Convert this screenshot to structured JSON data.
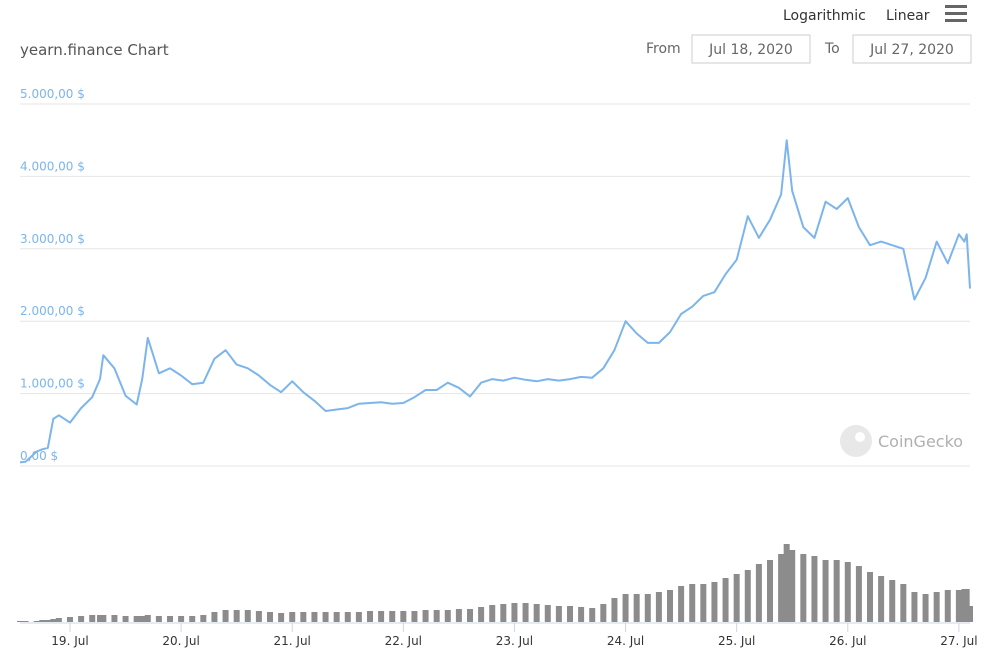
{
  "controls": {
    "scale_options": [
      "Logarithmic",
      "Linear"
    ],
    "from_label": "From",
    "from_date": "Jul 18, 2020",
    "to_label": "To",
    "to_date": "Jul 27, 2020"
  },
  "watermark": "CoinGecko",
  "chart_data": {
    "type": "line",
    "title": "yearn.finance Chart",
    "x": [
      18.55,
      18.6,
      18.7,
      18.75,
      18.8,
      18.85,
      18.9,
      19.0,
      19.1,
      19.2,
      19.27,
      19.3,
      19.4,
      19.5,
      19.6,
      19.65,
      19.7,
      19.8,
      19.9,
      20.0,
      20.1,
      20.2,
      20.3,
      20.4,
      20.5,
      20.6,
      20.7,
      20.8,
      20.9,
      21.0,
      21.1,
      21.2,
      21.3,
      21.4,
      21.5,
      21.6,
      21.7,
      21.8,
      21.9,
      22.0,
      22.1,
      22.2,
      22.3,
      22.4,
      22.5,
      22.6,
      22.7,
      22.8,
      22.9,
      23.0,
      23.1,
      23.2,
      23.3,
      23.4,
      23.5,
      23.6,
      23.7,
      23.8,
      23.9,
      24.0,
      24.1,
      24.2,
      24.3,
      24.4,
      24.5,
      24.6,
      24.7,
      24.8,
      24.9,
      25.0,
      25.1,
      25.2,
      25.3,
      25.4,
      25.45,
      25.5,
      25.6,
      25.7,
      25.8,
      25.9,
      26.0,
      26.1,
      26.2,
      26.3,
      26.4,
      26.5,
      26.6,
      26.7,
      26.8,
      26.9,
      27.0,
      27.05,
      27.07,
      27.1
    ],
    "series": [
      {
        "color": "#7cb5ec",
        "values": [
          50,
          60,
          200,
          230,
          250,
          650,
          700,
          600,
          800,
          950,
          1200,
          1530,
          1350,
          970,
          850,
          1200,
          1770,
          1280,
          1350,
          1250,
          1130,
          1150,
          1480,
          1600,
          1400,
          1350,
          1250,
          1120,
          1020,
          1170,
          1020,
          900,
          760,
          780,
          800,
          860,
          870,
          880,
          860,
          870,
          950,
          1050,
          1050,
          1150,
          1080,
          960,
          1150,
          1200,
          1180,
          1220,
          1190,
          1170,
          1200,
          1180,
          1200,
          1230,
          1220,
          1350,
          1600,
          2000,
          1830,
          1700,
          1700,
          1850,
          2100,
          2200,
          2350,
          2400,
          2650,
          2850,
          3450,
          3150,
          3400,
          3750,
          4500,
          3800,
          3300,
          3150,
          3650,
          3550,
          3700,
          3300,
          3050,
          3100,
          3050,
          3000,
          2300,
          2600,
          3100,
          2800,
          3200,
          3100,
          3200,
          2450
        ]
      },
      {
        "type": "bar",
        "axis": "y2",
        "color": "#8c8c8c",
        "values": [
          1,
          1,
          1,
          2,
          2,
          3,
          4,
          5,
          6,
          7,
          7,
          7,
          7,
          6,
          6,
          6,
          7,
          6,
          6,
          6,
          6,
          7,
          10,
          12,
          12,
          12,
          11,
          10,
          9,
          10,
          10,
          10,
          10,
          10,
          10,
          10,
          11,
          11,
          11,
          11,
          11,
          12,
          12,
          12,
          13,
          13,
          15,
          17,
          18,
          19,
          19,
          18,
          17,
          16,
          16,
          15,
          14,
          18,
          24,
          28,
          28,
          28,
          30,
          32,
          36,
          38,
          38,
          40,
          44,
          48,
          52,
          58,
          62,
          68,
          78,
          72,
          68,
          66,
          62,
          62,
          60,
          56,
          50,
          46,
          42,
          38,
          30,
          28,
          30,
          32,
          32,
          33,
          33,
          16
        ]
      }
    ],
    "xlim": [
      18.55,
      27.1
    ],
    "xticks": [
      {
        "value": 19,
        "label": "19. Jul"
      },
      {
        "value": 20,
        "label": "20. Jul"
      },
      {
        "value": 21,
        "label": "21. Jul"
      },
      {
        "value": 22,
        "label": "22. Jul"
      },
      {
        "value": 23,
        "label": "23. Jul"
      },
      {
        "value": 24,
        "label": "24. Jul"
      },
      {
        "value": 25,
        "label": "25. Jul"
      },
      {
        "value": 26,
        "label": "26. Jul"
      },
      {
        "value": 27,
        "label": "27. Jul"
      }
    ],
    "ylim": [
      0,
      5000
    ],
    "yticks": [
      {
        "value": 0,
        "label": "0,00 $"
      },
      {
        "value": 1000,
        "label": "1.000,00 $"
      },
      {
        "value": 2000,
        "label": "2.000,00 $"
      },
      {
        "value": 3000,
        "label": "3.000,00 $"
      },
      {
        "value": 4000,
        "label": "4.000,00 $"
      },
      {
        "value": 5000,
        "label": "5.000,00 $"
      }
    ],
    "y2lim": [
      0,
      80
    ],
    "grid": true
  }
}
